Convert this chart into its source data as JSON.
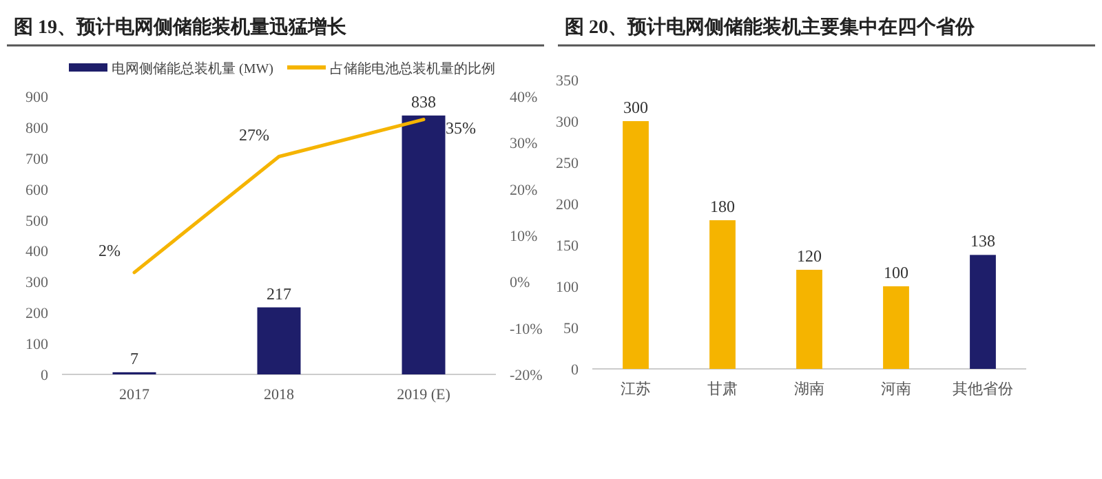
{
  "chart_data": [
    {
      "type": "bar",
      "title": "图 19、预计电网侧储能装机量迅猛增长",
      "categories": [
        "2017",
        "2018",
        "2019 (E)"
      ],
      "legend": "top",
      "series": [
        {
          "type": "bar",
          "name": "电网侧储能总装机量 (MW)",
          "color": "#1e1e6a",
          "values": [
            7,
            217,
            838
          ],
          "value_labels": [
            "7",
            "217",
            "838"
          ]
        },
        {
          "type": "line",
          "name": "占储能电池总装机量的比例",
          "color": "#f5b400",
          "axis": "y2",
          "values": [
            2,
            27,
            35
          ],
          "value_labels": [
            "2%",
            "27%",
            "35%"
          ]
        }
      ],
      "ylim": [
        0,
        900
      ],
      "yticks": [
        0,
        100,
        200,
        300,
        400,
        500,
        600,
        700,
        800,
        900
      ],
      "y2lim": [
        -20,
        40
      ],
      "y2ticks": [
        {
          "value": -20,
          "label": "-20%"
        },
        {
          "value": -10,
          "label": "-10%"
        },
        {
          "value": 0,
          "label": "0%"
        },
        {
          "value": 10,
          "label": "10%"
        },
        {
          "value": 20,
          "label": "20%"
        },
        {
          "value": 30,
          "label": "30%"
        },
        {
          "value": 40,
          "label": "40%"
        }
      ]
    },
    {
      "type": "bar",
      "title": "图 20、预计电网侧储能装机主要集中在四个省份",
      "categories": [
        "江苏",
        "甘肃",
        "湖南",
        "河南",
        "其他省份"
      ],
      "values": [
        300,
        180,
        120,
        100,
        138
      ],
      "colors": [
        "#f5b400",
        "#f5b400",
        "#f5b400",
        "#f5b400",
        "#1e1e6a"
      ],
      "data_labels": true,
      "ylim": [
        0,
        350
      ],
      "yticks": [
        0,
        50,
        100,
        150,
        200,
        250,
        300,
        350
      ]
    }
  ]
}
